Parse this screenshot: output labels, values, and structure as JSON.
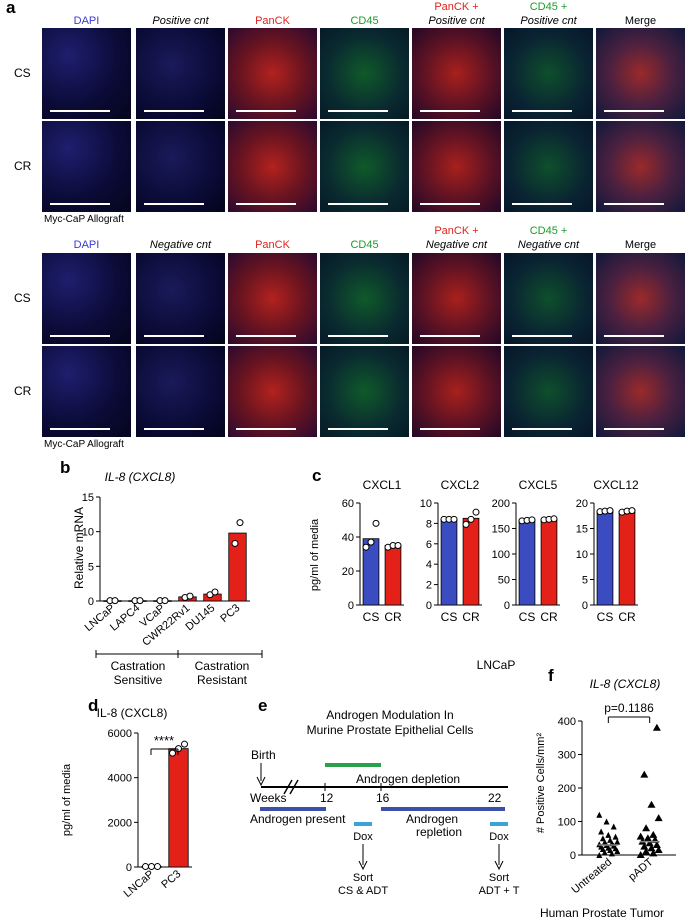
{
  "panel_a": {
    "label": "a",
    "block1": {
      "headers": [
        {
          "main": "DAPI",
          "color": "#3b3bd1"
        },
        {
          "main": "Positive cnt",
          "italic": true,
          "color": "#000000"
        },
        {
          "main": "PanCK",
          "color": "#e0231c"
        },
        {
          "main": "CD45",
          "color": "#1a9c2b"
        },
        {
          "main": "PanCK +",
          "sub": "Positive cnt",
          "color": "#e0231c"
        },
        {
          "main": "CD45 +",
          "sub": "Positive cnt",
          "color": "#1a9c2b"
        },
        {
          "main": "Merge",
          "color": "#000000"
        }
      ],
      "rows": [
        "CS",
        "CR"
      ],
      "caption": "Myc-CaP Allograft"
    },
    "block2": {
      "headers": [
        {
          "main": "DAPI",
          "color": "#3b3bd1"
        },
        {
          "main": "Negative cnt",
          "italic": true,
          "color": "#000000"
        },
        {
          "main": "PanCK",
          "color": "#e0231c"
        },
        {
          "main": "CD45",
          "color": "#1a9c2b"
        },
        {
          "main": "PanCK +",
          "sub": "Negative cnt",
          "color": "#e0231c"
        },
        {
          "main": "CD45 +",
          "sub": "Negative cnt",
          "color": "#1a9c2b"
        },
        {
          "main": "Merge",
          "color": "#000000"
        }
      ],
      "rows": [
        "CS",
        "CR"
      ],
      "caption": "Myc-CaP Allograft"
    }
  },
  "panel_b": {
    "label": "b",
    "title": "IL-8 (CXCL8)",
    "title_main": "IL-8 (",
    "title_gene": "CXCL8",
    "title_end": ")",
    "ylabel": "Relative mRNA",
    "group_sensitive": "Castration Sensitive",
    "group_resistant": "Castration Resistant",
    "group_sensitive_l1": "Castration",
    "group_sensitive_l2": "Sensitive",
    "group_resistant_l1": "Castration",
    "group_resistant_l2": "Resistant"
  },
  "panel_c": {
    "label": "c",
    "ylabel": "pg/ml of media",
    "xlabel": "LNCaP"
  },
  "panel_d": {
    "label": "d",
    "title": "IL-8 (CXCL8)",
    "ylabel": "pg/ml of media",
    "sig": "****"
  },
  "panel_e": {
    "label": "e",
    "title_l1": "Androgen Modulation In",
    "title_l2": "Murine Prostate Epithelial Cells",
    "birth": "Birth",
    "weeks": "Weeks",
    "w12": "12",
    "w16": "16",
    "w22": "22",
    "depletion": "Androgen depletion",
    "present": "Androgen present",
    "repletion_l1": "Androgen",
    "repletion_l2": "repletion",
    "dox1": "Dox",
    "dox2": "Dox",
    "sort1_l1": "Sort",
    "sort1_l2": "CS & ADT",
    "sort2_l1": "Sort",
    "sort2_l2": "ADT + T",
    "colors": {
      "present": "#3e4fa8",
      "depletion": "#2aa14a",
      "dox": "#3ba3d6"
    }
  },
  "panel_f": {
    "label": "f",
    "title": "IL-8 (CXCL8)",
    "ylabel": "# Positive Cells/mm²",
    "pvalue": "p=0.1186",
    "xlabel": "Human Prostate Tumor"
  },
  "chart_data": [
    {
      "panel": "b",
      "type": "bar",
      "title": "IL-8 (CXCL8)",
      "ylabel": "Relative mRNA",
      "ylim": [
        0,
        15
      ],
      "yticks": [
        "0",
        "5",
        "10",
        "15"
      ],
      "categories": [
        "LNCaP",
        "LAPC4",
        "VCaP",
        "CWR22Rv1",
        "DU145",
        "PC3"
      ],
      "values": [
        0.05,
        0.05,
        0.05,
        0.6,
        1.0,
        9.8
      ],
      "points": [
        [
          0.05,
          0.05
        ],
        [
          0.05,
          0.05
        ],
        [
          0.05,
          0.05
        ],
        [
          0.5,
          0.7
        ],
        [
          0.9,
          1.3
        ],
        [
          8.3,
          11.3
        ]
      ],
      "colors": [
        "#3b4cc0",
        "#3b4cc0",
        "#3b4cc0",
        "#e32119",
        "#e32119",
        "#e32119"
      ]
    },
    {
      "panel": "c",
      "type": "bar",
      "title": "CXCL1",
      "ylim": [
        0,
        60
      ],
      "yticks": [
        "0",
        "20",
        "40",
        "60"
      ],
      "categories": [
        "CS",
        "CR"
      ],
      "values": [
        39,
        35
      ],
      "points": [
        [
          34,
          37,
          48
        ],
        [
          34,
          35,
          35
        ]
      ],
      "colors": [
        "#3b4cc0",
        "#e32119"
      ]
    },
    {
      "panel": "c",
      "type": "bar",
      "title": "CXCL2",
      "ylim": [
        0,
        10
      ],
      "yticks": [
        "0",
        "2",
        "4",
        "6",
        "8",
        "10"
      ],
      "categories": [
        "CS",
        "CR"
      ],
      "values": [
        8.4,
        8.5
      ],
      "points": [
        [
          8.4,
          8.4,
          8.4
        ],
        [
          7.9,
          8.4,
          9.1
        ]
      ],
      "colors": [
        "#3b4cc0",
        "#e32119"
      ]
    },
    {
      "panel": "c",
      "type": "bar",
      "title": "CXCL5",
      "ylim": [
        0,
        200
      ],
      "yticks": [
        "0",
        "50",
        "100",
        "150",
        "200"
      ],
      "categories": [
        "CS",
        "CR"
      ],
      "values": [
        166,
        168
      ],
      "points": [
        [
          165,
          166,
          167
        ],
        [
          167,
          168,
          169
        ]
      ],
      "colors": [
        "#3b4cc0",
        "#e32119"
      ]
    },
    {
      "panel": "c",
      "type": "bar",
      "title": "CXCL12",
      "ylim": [
        0,
        20
      ],
      "yticks": [
        "0",
        "5",
        "10",
        "15",
        "20"
      ],
      "categories": [
        "CS",
        "CR"
      ],
      "values": [
        18.4,
        18.4
      ],
      "points": [
        [
          18.3,
          18.4,
          18.5
        ],
        [
          18.2,
          18.4,
          18.5
        ]
      ],
      "colors": [
        "#3b4cc0",
        "#e32119"
      ]
    },
    {
      "panel": "d",
      "type": "bar",
      "title": "IL-8 (CXCL8)",
      "ylabel": "pg/ml of media",
      "ylim": [
        0,
        6000
      ],
      "yticks": [
        "0",
        "2000",
        "4000",
        "6000"
      ],
      "categories": [
        "LNCaP",
        "PC3"
      ],
      "values": [
        20,
        5300
      ],
      "points": [
        [
          20,
          20,
          20
        ],
        [
          5100,
          5300,
          5500
        ]
      ],
      "colors": [
        "#3b4cc0",
        "#e32119"
      ]
    },
    {
      "panel": "f",
      "type": "scatter",
      "title": "IL-8 (CXCL8)",
      "ylabel": "# Positive Cells/mm²",
      "ylim": [
        0,
        400
      ],
      "yticks": [
        "0",
        "100",
        "200",
        "300",
        "400"
      ],
      "categories": [
        "Untreated",
        "pADT"
      ],
      "medians": [
        30,
        40
      ],
      "points": [
        [
          0,
          5,
          8,
          12,
          15,
          18,
          20,
          22,
          25,
          28,
          30,
          32,
          35,
          38,
          40,
          45,
          50,
          55,
          60,
          70,
          85,
          100,
          120
        ],
        [
          0,
          5,
          10,
          15,
          20,
          25,
          30,
          35,
          40,
          45,
          50,
          55,
          60,
          80,
          110,
          150,
          240,
          380
        ]
      ]
    }
  ]
}
